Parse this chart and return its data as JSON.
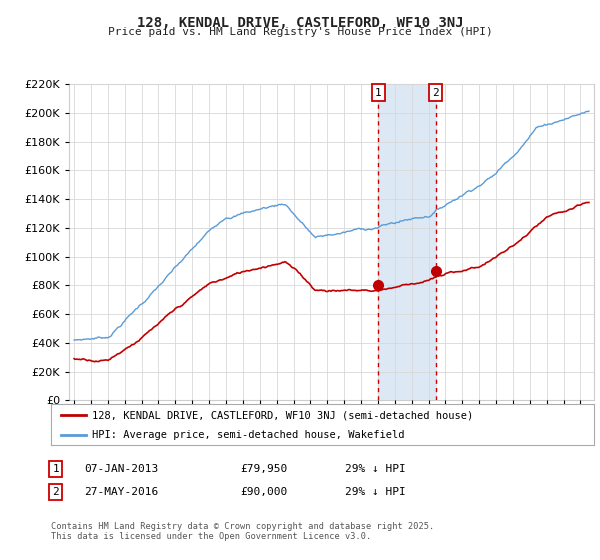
{
  "title": "128, KENDAL DRIVE, CASTLEFORD, WF10 3NJ",
  "subtitle": "Price paid vs. HM Land Registry's House Price Index (HPI)",
  "legend_line1": "128, KENDAL DRIVE, CASTLEFORD, WF10 3NJ (semi-detached house)",
  "legend_line2": "HPI: Average price, semi-detached house, Wakefield",
  "footnote": "Contains HM Land Registry data © Crown copyright and database right 2025.\nThis data is licensed under the Open Government Licence v3.0.",
  "sale1_label": "1",
  "sale1_date": "07-JAN-2013",
  "sale1_price": "£79,950",
  "sale1_note": "29% ↓ HPI",
  "sale2_label": "2",
  "sale2_date": "27-MAY-2016",
  "sale2_price": "£90,000",
  "sale2_note": "29% ↓ HPI",
  "sale1_year": 2013.03,
  "sale2_year": 2016.42,
  "sale1_value": 79950,
  "sale2_value": 90000,
  "ylim": [
    0,
    220000
  ],
  "xlim_min": 1994.7,
  "xlim_max": 2025.8,
  "hpi_color": "#5b9bd5",
  "price_color": "#c00000",
  "vline_color": "#cc0000",
  "shade_color": "#dce9f5",
  "background_color": "#ffffff",
  "grid_color": "#d8d8d8"
}
